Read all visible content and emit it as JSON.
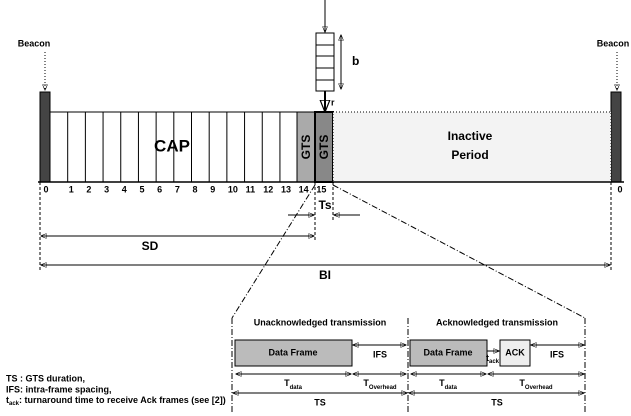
{
  "beacons": [
    "Beacon",
    "Beacon"
  ],
  "queue": {
    "b": "b",
    "r": "r"
  },
  "superframe": {
    "cap": "CAP",
    "gts": [
      "GTS",
      "GTS"
    ],
    "inactive": [
      "Inactive",
      "Period"
    ],
    "slots": [
      "0",
      "1",
      "2",
      "3",
      "4",
      "5",
      "6",
      "7",
      "8",
      "9",
      "10",
      "11",
      "12",
      "13",
      "14",
      "15"
    ],
    "end_slot": "0"
  },
  "durations": {
    "ts": "Ts",
    "sd": "SD",
    "bi": "BI"
  },
  "transmissions": {
    "unack": {
      "title": "Unacknowledged transmission",
      "frame": "Data Frame",
      "ifs": "IFS",
      "t_data": {
        "base": "T",
        "sub": "data"
      },
      "t_overhead": {
        "base": "T",
        "sub": "Overhead"
      },
      "ts": "TS"
    },
    "ack": {
      "title": "Acknowledged transmission",
      "frame": "Data Frame",
      "ack": "ACK",
      "ifs": "IFS",
      "t_ack": {
        "base": "t",
        "sub": "ack"
      },
      "t_data": {
        "base": "T",
        "sub": "data"
      },
      "t_overhead": {
        "base": "T",
        "sub": "Overhead"
      },
      "ts": "TS"
    }
  },
  "legend": [
    "TS : GTS duration,",
    "IFS: intra-frame spacing,",
    {
      "base": "t",
      "sub": "ack",
      "text": ": turnaround time to receive Ack frames (see [2])"
    }
  ]
}
